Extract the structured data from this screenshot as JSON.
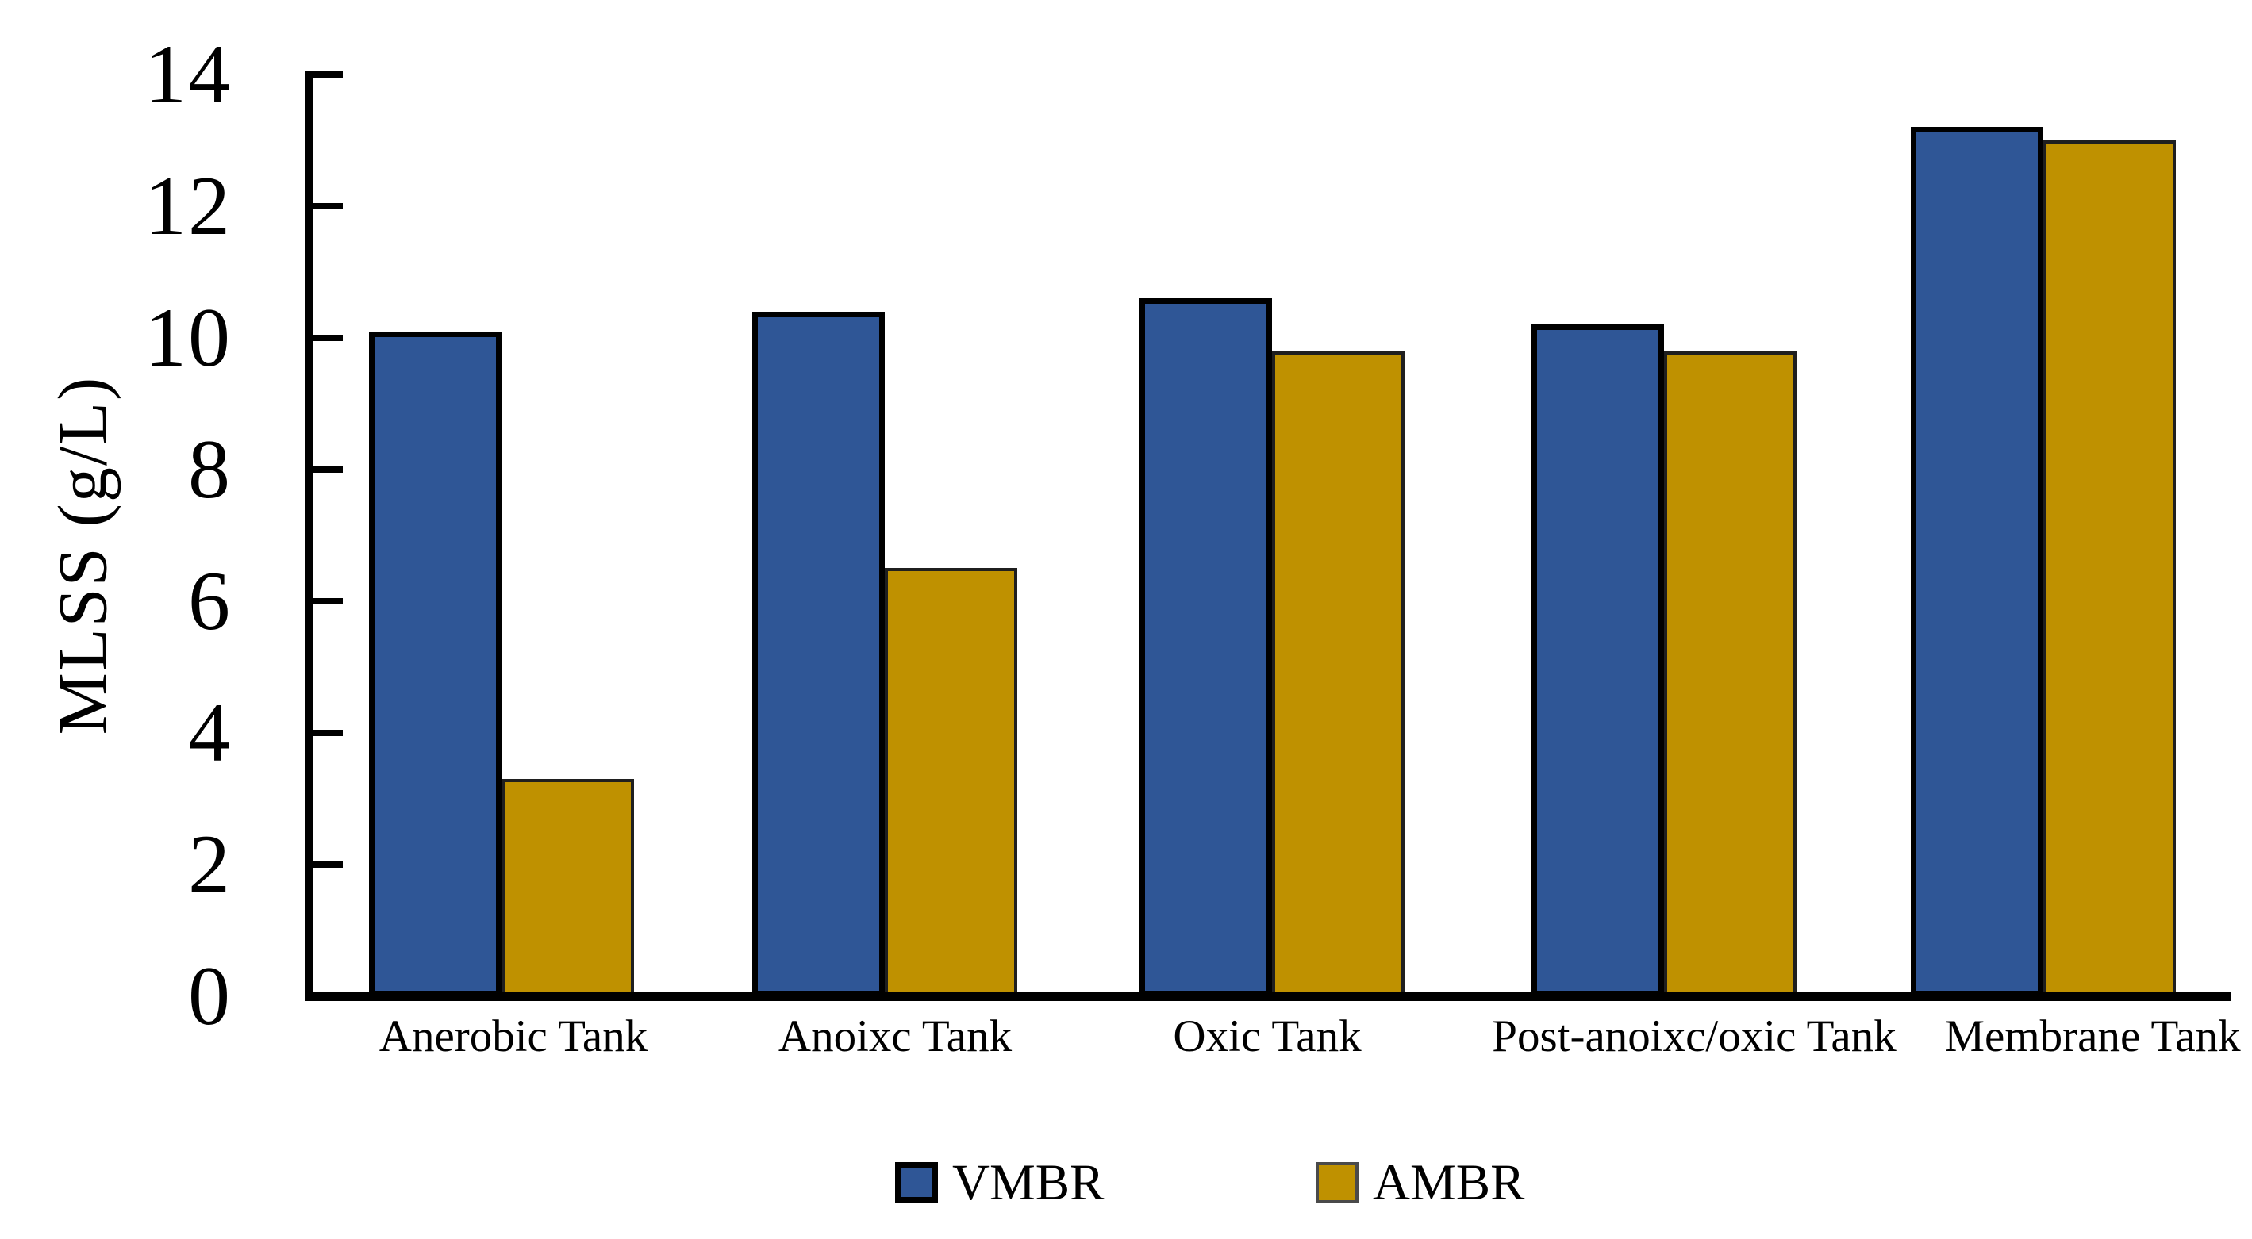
{
  "chart_data": {
    "type": "bar",
    "title": "",
    "categories": [
      "Anerobic Tank",
      "Anoixc Tank",
      "Oxic Tank",
      "Post-anoixc/oxic Tank",
      "Membrane Tank"
    ],
    "series": [
      {
        "name": "VMBR",
        "color": "#2F5696",
        "border_color": "#000000",
        "values": [
          10.1,
          10.4,
          10.6,
          10.2,
          13.2
        ]
      },
      {
        "name": "AMBR",
        "color": "#BF9100",
        "border_color": "#1F1F1F",
        "values": [
          3.3,
          6.5,
          9.8,
          9.8,
          13.0
        ]
      }
    ],
    "xlabel": "",
    "ylabel": "MLSS (g/L)",
    "ylim": [
      0,
      14
    ],
    "yticks": [
      0,
      2,
      4,
      6,
      8,
      10,
      12,
      14
    ],
    "grid": false,
    "legend_position": "bottom",
    "axis_color": "#000000",
    "background_color": "#FFFFFF"
  }
}
